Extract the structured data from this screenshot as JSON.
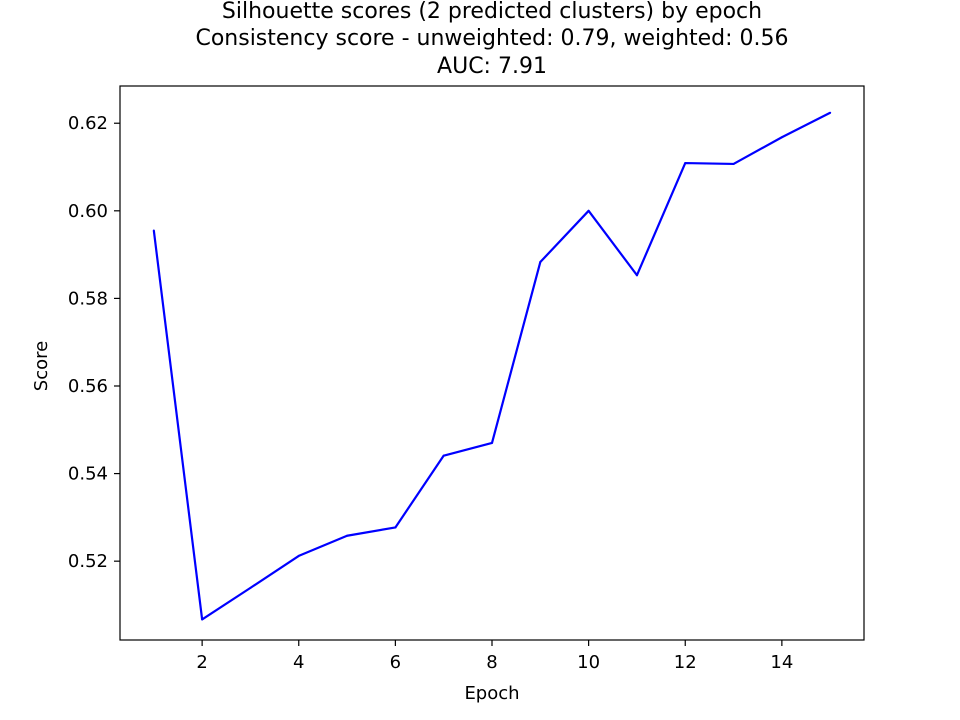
{
  "chart_data": {
    "type": "line",
    "title_lines": [
      "Silhouette scores (2 predicted clusters) by epoch",
      "Consistency score - unweighted: 0.79, weighted: 0.56",
      "AUC: 7.91"
    ],
    "xlabel": "Epoch",
    "ylabel": "Score",
    "x": [
      1,
      2,
      3,
      4,
      5,
      6,
      7,
      8,
      9,
      10,
      11,
      12,
      13,
      14,
      15
    ],
    "series": [
      {
        "color": "#0000ff",
        "values": [
          0.5955,
          0.5067,
          0.5139,
          0.5212,
          0.5258,
          0.5277,
          0.5441,
          0.547,
          0.5883,
          0.6,
          0.5853,
          0.6109,
          0.6107,
          0.6168,
          0.6224
        ]
      }
    ],
    "xlim": [
      0.3,
      15.7
    ],
    "ylim": [
      0.502,
      0.6285
    ],
    "xticks": [
      2,
      4,
      6,
      8,
      10,
      12,
      14
    ],
    "xtick_labels": [
      "2",
      "4",
      "6",
      "8",
      "10",
      "12",
      "14"
    ],
    "yticks": [
      0.52,
      0.54,
      0.56,
      0.58,
      0.6,
      0.62
    ],
    "ytick_labels": [
      "0.52",
      "0.54",
      "0.56",
      "0.58",
      "0.60",
      "0.62"
    ],
    "grid": false,
    "legend": "none"
  }
}
